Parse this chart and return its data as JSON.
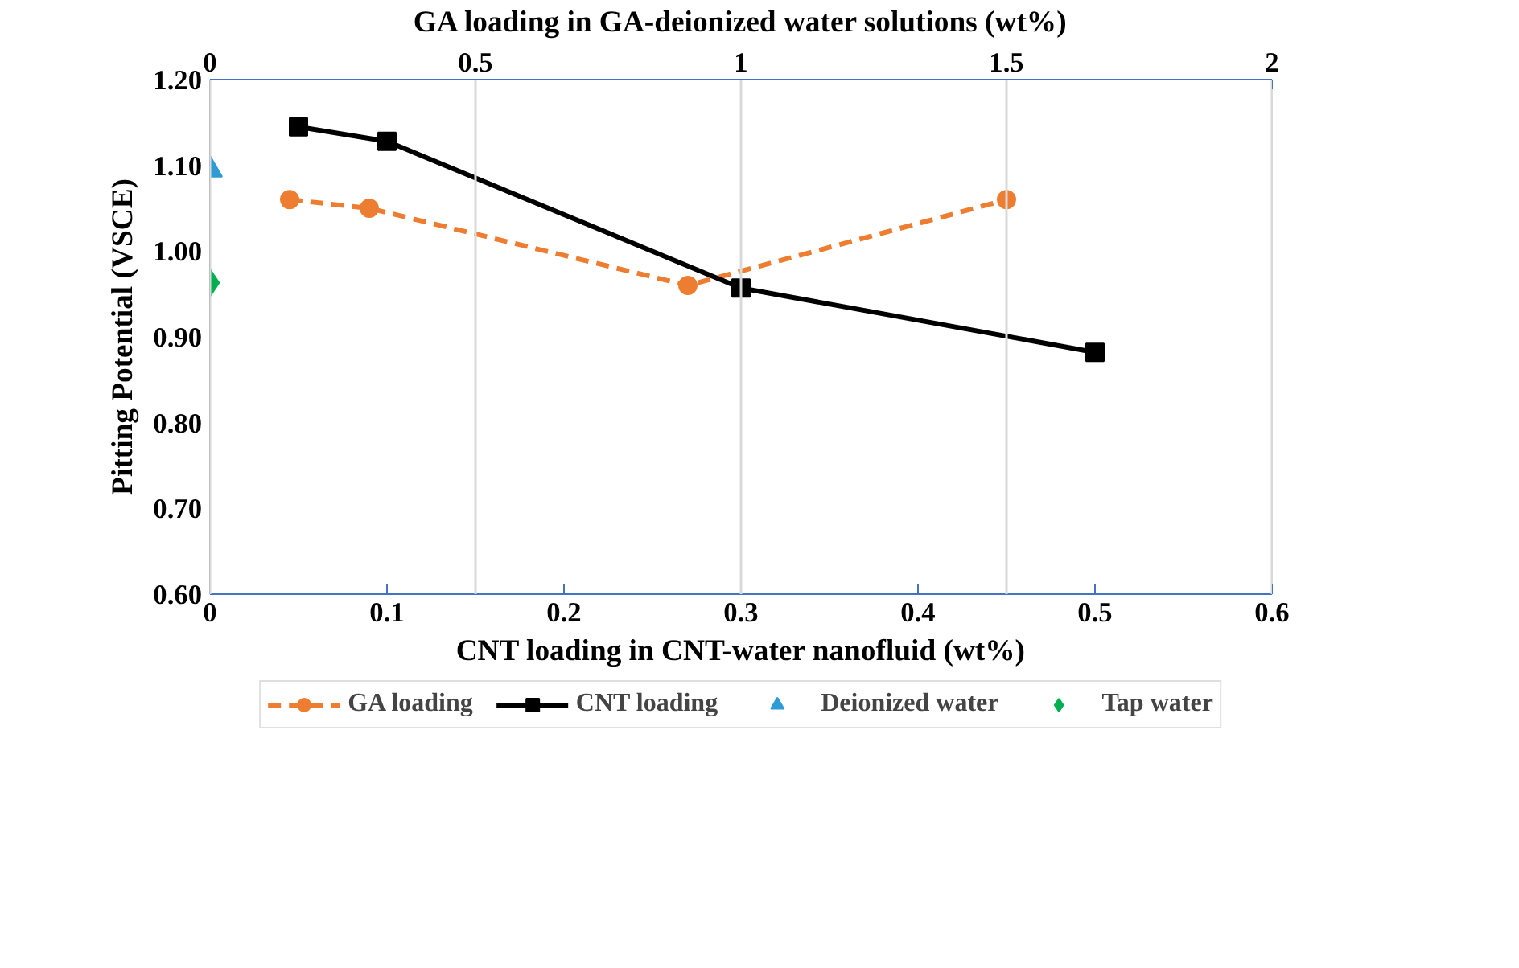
{
  "chart_data": {
    "type": "line",
    "xlabel": "CNT loading in CNT-water nanofluid (wt%)",
    "x2label": "GA loading in GA-deionized water solutions (wt%)",
    "ylabel": "Pitting Potential (VSCE)",
    "xlim": [
      0,
      0.6
    ],
    "xticks": [
      0,
      0.1,
      0.2,
      0.3,
      0.4,
      0.5,
      0.6
    ],
    "x2lim": [
      0,
      2
    ],
    "x2ticks": [
      0,
      0.5,
      1,
      1.5,
      2
    ],
    "ylim": [
      0.6,
      1.2
    ],
    "yticks": [
      {
        "value": 0.6,
        "label": "0.60"
      },
      {
        "value": 0.7,
        "label": "0.70"
      },
      {
        "value": 0.8,
        "label": "0.80"
      },
      {
        "value": 0.9,
        "label": "0.90"
      },
      {
        "value": 1.0,
        "label": "1.00"
      },
      {
        "value": 1.1,
        "label": "1.10"
      },
      {
        "value": 1.2,
        "label": "1.20"
      }
    ],
    "grid": "x",
    "legend": "bottom",
    "series": [
      {
        "name": "GA loading",
        "axis": "x2",
        "color": "#ed7d31",
        "marker": "circle",
        "line_style": "dashed",
        "x": [
          0.15,
          0.3,
          0.9,
          1.5
        ],
        "values": [
          1.06,
          1.05,
          0.96,
          1.06
        ]
      },
      {
        "name": "CNT loading",
        "color": "#000000",
        "marker": "square",
        "line_style": "solid",
        "x": [
          0.05,
          0.1,
          0.3,
          0.5
        ],
        "values": [
          1.145,
          1.128,
          0.957,
          0.882
        ]
      },
      {
        "name": "Deionized water",
        "color": "#2e9bd6",
        "marker": "triangle",
        "x": [
          0
        ],
        "values": [
          1.095
        ]
      },
      {
        "name": "Tap water",
        "color": "#00b050",
        "marker": "diamond",
        "x": [
          0
        ],
        "values": [
          0.963
        ]
      }
    ]
  }
}
